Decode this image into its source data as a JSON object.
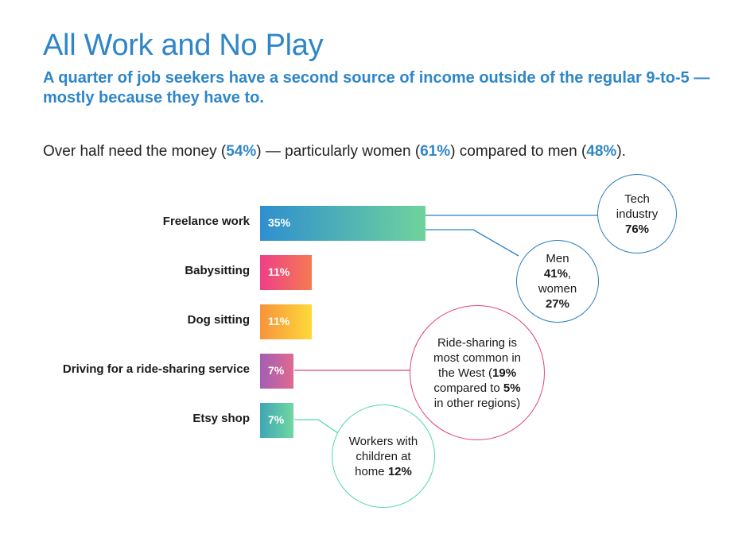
{
  "header": {
    "title": "All Work and No Play",
    "subtitle": "A quarter of job seekers have a second source of income outside of the regular 9-to-5 — mostly because they have to."
  },
  "summary": {
    "t1": "Over half need the money (",
    "v1": "54%",
    "t2": ") — particularly women (",
    "v2": "61%",
    "t3": ") compared to men (",
    "v3": "48%",
    "t4": ")."
  },
  "chart_data": {
    "type": "bar",
    "orientation": "horizontal",
    "categories": [
      "Freelance work",
      "Babysitting",
      "Dog sitting",
      "Driving for a ride-sharing service",
      "Etsy shop"
    ],
    "values": [
      35,
      11,
      11,
      7,
      7
    ],
    "value_labels": [
      "35%",
      "11%",
      "11%",
      "7%",
      "7%"
    ],
    "unit": "%",
    "bar_colors": [
      [
        "#2f8fcf",
        "#6fd39c"
      ],
      [
        "#ee3f86",
        "#f57a52"
      ],
      [
        "#f7933a",
        "#ffd93a"
      ],
      [
        "#a35eb4",
        "#e06a90"
      ],
      [
        "#3fa6b6",
        "#70d8a0"
      ]
    ],
    "annotations": [
      {
        "id": "tech",
        "bar": 0,
        "lines": [
          {
            "text": "Tech",
            "bold": false
          },
          {
            "text": "industry",
            "bold": false
          },
          {
            "text": "76%",
            "bold": true
          }
        ],
        "color": "#2b7fc1"
      },
      {
        "id": "gender",
        "bar": 0,
        "lines": [
          {
            "text": "Men",
            "bold": false
          },
          {
            "text": "41%",
            "bold": true
          },
          {
            "text": ",",
            "bold": false
          },
          {
            "text": "women",
            "bold": false
          },
          {
            "text": "27%",
            "bold": true
          }
        ],
        "color": "#2b7fc1"
      },
      {
        "id": "west",
        "bar": 3,
        "lines": [
          {
            "text": "Ride-sharing is most common in the West (",
            "bold": false
          },
          {
            "text": "19%",
            "bold": true
          },
          {
            "text": " compared to ",
            "bold": false
          },
          {
            "text": "5%",
            "bold": true
          },
          {
            "text": " in other regions)",
            "bold": false
          }
        ],
        "color": "#e0447a"
      },
      {
        "id": "children",
        "bar": 4,
        "lines": [
          {
            "text": "Workers with children at home ",
            "bold": false
          },
          {
            "text": "12%",
            "bold": true
          }
        ],
        "color": "#4fd8b0"
      }
    ]
  }
}
